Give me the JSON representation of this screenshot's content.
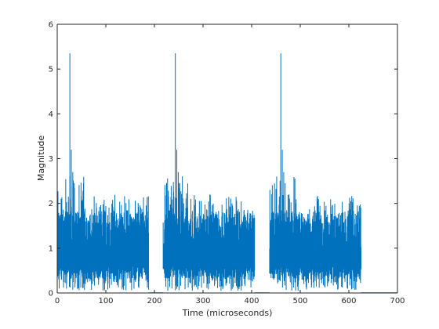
{
  "chart_data": {
    "type": "line",
    "title": "",
    "xlabel": "Time (microseconds)",
    "ylabel": "Magnitude",
    "xlim": [
      0,
      700
    ],
    "ylim": [
      0,
      6
    ],
    "xticks": [
      "0",
      "100",
      "200",
      "300",
      "400",
      "500",
      "600",
      "700"
    ],
    "yticks": [
      "0",
      "1",
      "2",
      "3",
      "4",
      "5",
      "6"
    ],
    "grid": false,
    "legend": "none",
    "line_color": "#0072BD",
    "series": [
      {
        "name": "",
        "bursts": [
          {
            "start": 0,
            "end": 188,
            "peak_time": 26,
            "peak": 5.35,
            "high_end": 60,
            "high_max": 2.65,
            "typical_max": 2.2,
            "typical_min": 0.05
          },
          {
            "start": 218,
            "end": 406,
            "peak_time": 243,
            "peak": 5.35,
            "high_end": 270,
            "high_max": 2.65,
            "typical_max": 2.2,
            "typical_min": 0.05
          },
          {
            "start": 437,
            "end": 625,
            "peak_time": 460,
            "peak": 5.35,
            "high_end": 490,
            "high_max": 2.65,
            "typical_max": 2.2,
            "typical_min": 0.05
          }
        ],
        "baseline_end": 700
      }
    ]
  }
}
